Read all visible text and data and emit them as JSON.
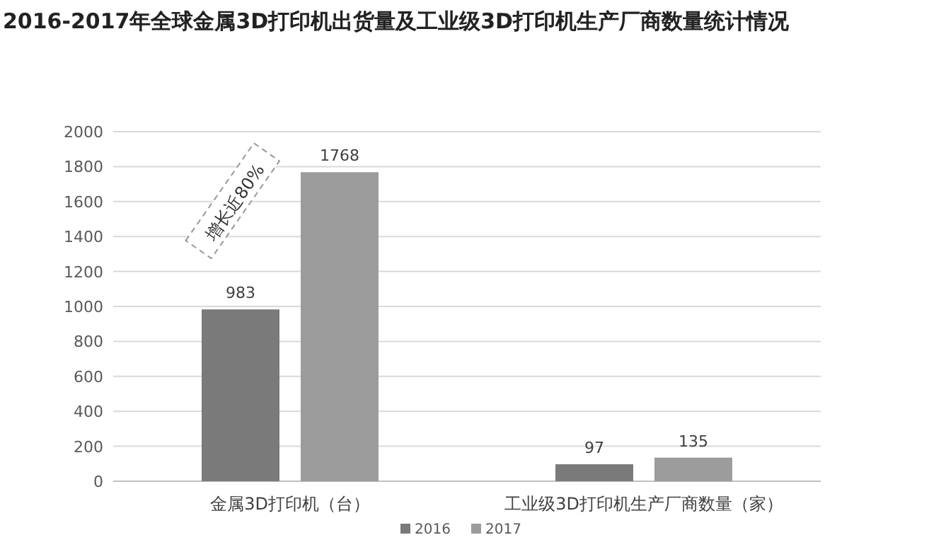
{
  "chart_data": {
    "type": "bar",
    "title": "2016-2017年全球金属3D打印机出货量及工业级3D打印机生产厂商数量统计情况",
    "categories": [
      "金属3D打印机（台）",
      "工业级3D打印机生产厂商数量（家）"
    ],
    "series": [
      {
        "name": "2016",
        "color": "#7a7a7a",
        "values": [
          983,
          97
        ]
      },
      {
        "name": "2017",
        "color": "#9c9c9c",
        "values": [
          1768,
          135
        ]
      }
    ],
    "ylim": [
      0,
      2000
    ],
    "yticks": [
      0,
      200,
      400,
      600,
      800,
      1000,
      1200,
      1400,
      1600,
      1800,
      2000
    ],
    "grid": "y",
    "legend": "bottom",
    "data_labels": true,
    "annotations": [
      "增长近80%"
    ]
  }
}
